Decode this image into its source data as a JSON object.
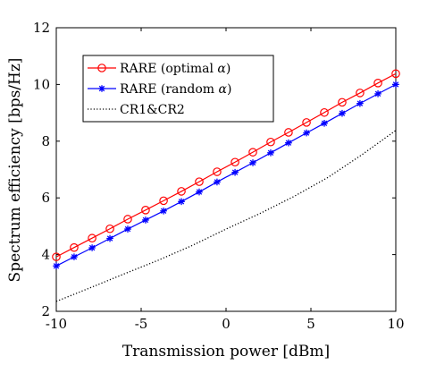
{
  "chart_data": {
    "type": "line",
    "xlabel": "Transmission power [dBm]",
    "ylabel": "Spectrum efficiency [bps/Hz]",
    "xlim": [
      -10,
      10
    ],
    "ylim": [
      2,
      12
    ],
    "xticks": [
      "-10",
      "-5",
      "0",
      "5",
      "10"
    ],
    "yticks": [
      "2",
      "4",
      "6",
      "8",
      "10",
      "12"
    ],
    "grid": false,
    "legend_position": "top-left",
    "series": [
      {
        "name": "RARE (optimal α)",
        "legend_prefix": "RARE (optimal ",
        "legend_var": "α",
        "legend_suffix": ")",
        "color": "#ff0000",
        "marker": "circle",
        "style": "solid",
        "x": [
          -10,
          -8.95,
          -7.89,
          -6.84,
          -5.79,
          -4.74,
          -3.68,
          -2.63,
          -1.58,
          -0.53,
          0.53,
          1.58,
          2.63,
          3.68,
          4.74,
          5.79,
          6.84,
          7.89,
          8.95,
          10
        ],
        "y": [
          3.92,
          4.25,
          4.58,
          4.91,
          5.25,
          5.57,
          5.9,
          6.23,
          6.57,
          6.92,
          7.26,
          7.61,
          7.97,
          8.31,
          8.66,
          9.01,
          9.37,
          9.7,
          10.05,
          10.38
        ]
      },
      {
        "name": "RARE (random α)",
        "legend_prefix": "RARE (random ",
        "legend_var": "α",
        "legend_suffix": ")",
        "color": "#0000ff",
        "marker": "asterisk",
        "style": "solid",
        "x": [
          -10,
          -8.95,
          -7.89,
          -6.84,
          -5.79,
          -4.74,
          -3.68,
          -2.63,
          -1.58,
          -0.53,
          0.53,
          1.58,
          2.63,
          3.68,
          4.74,
          5.79,
          6.84,
          7.89,
          8.95,
          10
        ],
        "y": [
          3.6,
          3.92,
          4.24,
          4.57,
          4.9,
          5.22,
          5.54,
          5.87,
          6.21,
          6.56,
          6.9,
          7.24,
          7.59,
          7.94,
          8.29,
          8.63,
          8.98,
          9.33,
          9.67,
          10.0
        ]
      },
      {
        "name": "CR1&CR2",
        "legend_prefix": "CR1&CR2",
        "legend_var": "",
        "legend_suffix": "",
        "color": "#000000",
        "marker": "none",
        "style": "dotted",
        "x": [
          -10,
          -8,
          -6,
          -4,
          -2,
          0,
          2,
          4,
          6,
          8,
          10
        ],
        "y": [
          2.35,
          2.83,
          3.32,
          3.8,
          4.32,
          4.9,
          5.45,
          6.05,
          6.72,
          7.52,
          8.38
        ]
      }
    ]
  }
}
